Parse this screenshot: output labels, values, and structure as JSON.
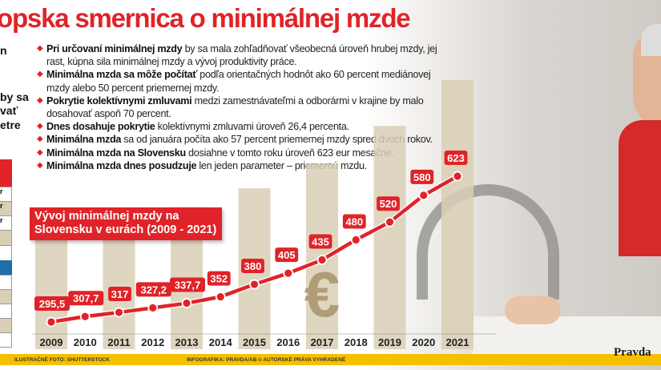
{
  "title": "opska smernica o minimálnej mzde",
  "left_fragments": [
    "n",
    "by sa",
    "vať",
    "etre"
  ],
  "left_table_fragments": [
    "r",
    "r",
    "r"
  ],
  "bullets": [
    {
      "bold": "Pri určovaní minimálnej mzdy",
      "text": " by sa mala zohľadňovať všeobecná úroveň hrubej mzdy, jej rast, kúpna sila minimálnej mzdy a vývoj produktivity práce."
    },
    {
      "bold": "Minimálna mzda sa môže počítať",
      "text": " podľa orientačných hodnôt ako 60 percent mediánovej mzdy alebo 50 percent priemernej mzdy."
    },
    {
      "bold": "Pokrytie kolektívnymi zmluvami",
      "text": " medzi zamestnávateľmi a odborármi v krajine by malo dosahovať aspoň 70 percent."
    },
    {
      "bold": "Dnes dosahuje pokrytie",
      "text": " kolektívnymi zmluvami úroveň 26,4 percenta."
    },
    {
      "bold": "Minimálna mzda",
      "text": " sa od januára počíta ako 57 percent priemernej mzdy spred dvoch rokov."
    },
    {
      "bold": "Minimálna mzda na Slovensku",
      "text": " dosiahne v tomto roku úroveň 623 eur mesačne."
    },
    {
      "bold": "Minimálna mzda dnes posudzuje",
      "text": " len jeden parameter – priemernú mzdu."
    }
  ],
  "chart_data": {
    "type": "line",
    "title": "Vývoj minimálnej mzdy na Slovensku v eurách (2009 - 2021)",
    "categories": [
      "2009",
      "2010",
      "2011",
      "2012",
      "2013",
      "2014",
      "2015",
      "2016",
      "2017",
      "2018",
      "2019",
      "2020",
      "2021"
    ],
    "values": [
      295.5,
      307.7,
      317,
      327.2,
      337.7,
      352,
      380,
      405,
      435,
      480,
      520,
      580,
      623
    ],
    "data_labels": [
      "295,5",
      "307,7",
      "317",
      "327,2",
      "337,7",
      "352",
      "380",
      "405",
      "435",
      "480",
      "520",
      "580",
      "623"
    ],
    "colors": {
      "line": "#e02328",
      "bars": "#d9cfb6",
      "label_bg": "#e02328"
    },
    "decoration_symbol": "€",
    "grid": false
  },
  "footer": {
    "photo_credit": "ILUSTRAČNÉ FOTO: SHUTTERSTOCK",
    "infographic_credit": "INFOGRAFIKA: PRAVDA/AB © AUTORSKÉ PRÁVA VYHRADENÉ",
    "logo": "Pravda"
  }
}
